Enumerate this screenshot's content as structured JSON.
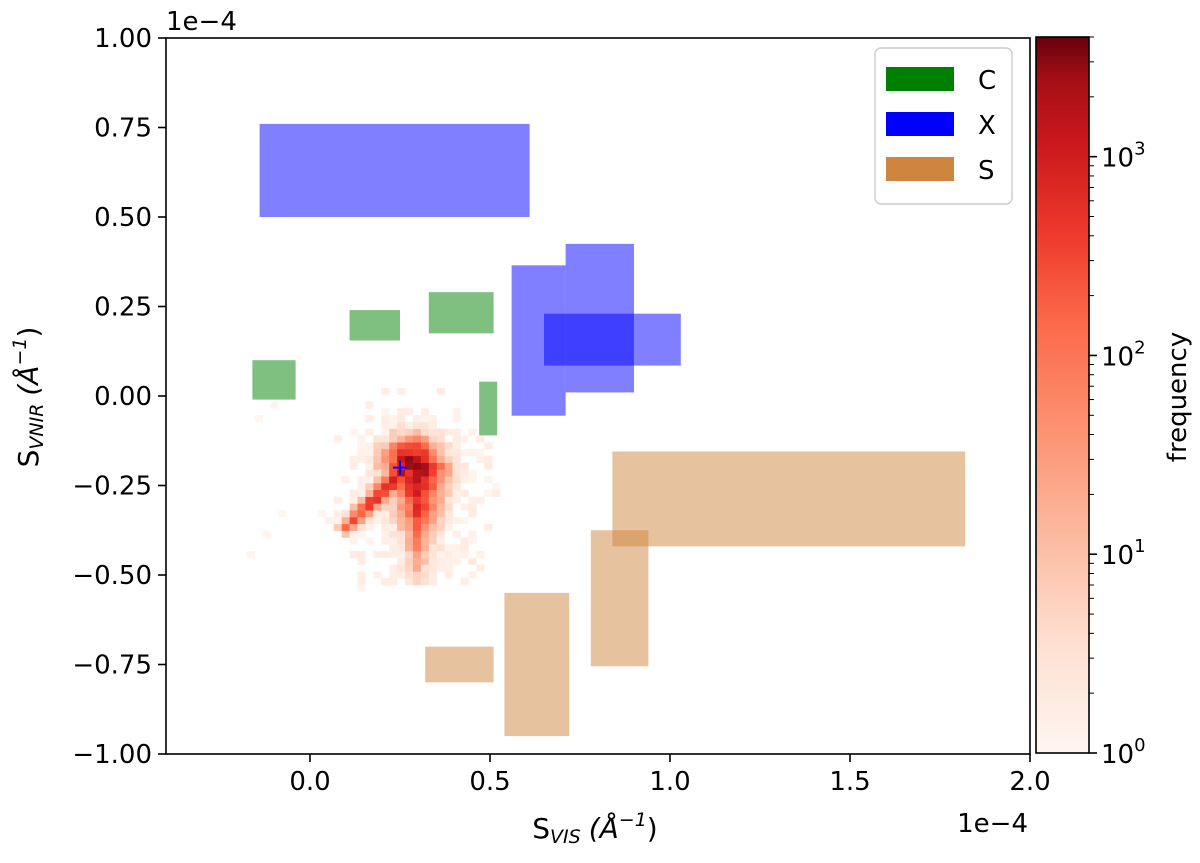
{
  "chart_data": {
    "type": "heatmap",
    "title": "",
    "xlabel": {
      "main": "S",
      "sub": "VIS",
      "unit": "(Å",
      "exp": "−1",
      "close": ")"
    },
    "ylabel": {
      "main": "S",
      "sub": "VNIR",
      "unit": "(Å",
      "exp": "−1",
      "close": ")"
    },
    "xlim": [
      -0.4,
      2.0
    ],
    "ylim": [
      -1.0,
      1.0
    ],
    "x_scale_factor": "1e−4",
    "y_scale_factor": "1e−4",
    "x_ticks": [
      0.0,
      0.5,
      1.0,
      1.5,
      2.0
    ],
    "x_tick_labels": [
      "0.0",
      "0.5",
      "1.0",
      "1.5",
      "2.0"
    ],
    "y_ticks": [
      -1.0,
      -0.75,
      -0.5,
      -0.25,
      0.0,
      0.25,
      0.5,
      0.75,
      1.0
    ],
    "y_tick_labels": [
      "−1.00",
      "−0.75",
      "−0.50",
      "−0.25",
      "0.00",
      "0.25",
      "0.50",
      "0.75",
      "1.00"
    ],
    "grid": false,
    "legend_position": "top-right",
    "legend": [
      {
        "label": "C",
        "color": "#008000"
      },
      {
        "label": "X",
        "color": "#0000ff"
      },
      {
        "label": "S",
        "color": "#cd853f"
      }
    ],
    "regions": [
      {
        "class": "X",
        "x": [
          -0.14,
          0.61
        ],
        "y": [
          0.5,
          0.76
        ]
      },
      {
        "class": "X",
        "x": [
          0.56,
          0.71
        ],
        "y": [
          -0.055,
          0.365
        ]
      },
      {
        "class": "X",
        "x": [
          0.71,
          0.9
        ],
        "y": [
          0.01,
          0.425
        ]
      },
      {
        "class": "X",
        "x": [
          0.65,
          1.03
        ],
        "y": [
          0.085,
          0.23
        ]
      },
      {
        "class": "C",
        "x": [
          -0.16,
          -0.04
        ],
        "y": [
          -0.01,
          0.1
        ]
      },
      {
        "class": "C",
        "x": [
          0.11,
          0.25
        ],
        "y": [
          0.155,
          0.24
        ]
      },
      {
        "class": "C",
        "x": [
          0.33,
          0.51
        ],
        "y": [
          0.175,
          0.29
        ]
      },
      {
        "class": "C",
        "x": [
          0.47,
          0.52
        ],
        "y": [
          -0.11,
          0.04
        ]
      },
      {
        "class": "S",
        "x": [
          0.84,
          1.82
        ],
        "y": [
          -0.42,
          -0.155
        ]
      },
      {
        "class": "S",
        "x": [
          0.78,
          0.94
        ],
        "y": [
          -0.755,
          -0.375
        ]
      },
      {
        "class": "S",
        "x": [
          0.54,
          0.72
        ],
        "y": [
          -0.95,
          -0.55
        ]
      },
      {
        "class": "S",
        "x": [
          0.32,
          0.51
        ],
        "y": [
          -0.8,
          -0.7
        ]
      }
    ],
    "region_opacity": 0.5,
    "heatmap": {
      "peak_x": 0.27,
      "peak_y": -0.195,
      "peak_frequency": 3000,
      "bin_width": 0.022,
      "bin_height": 0.019
    },
    "marker": {
      "x": 0.25,
      "y": -0.2,
      "symbol": "+",
      "color": "#0000ff"
    },
    "colorbar": {
      "label": "frequency",
      "scale": "log",
      "range": [
        1,
        4000
      ],
      "colormap": "Reds",
      "ticks": [
        1,
        10,
        100,
        1000
      ],
      "tick_bases": [
        "10",
        "10",
        "10",
        "10"
      ],
      "tick_exps": [
        "0",
        "1",
        "2",
        "3"
      ]
    }
  }
}
